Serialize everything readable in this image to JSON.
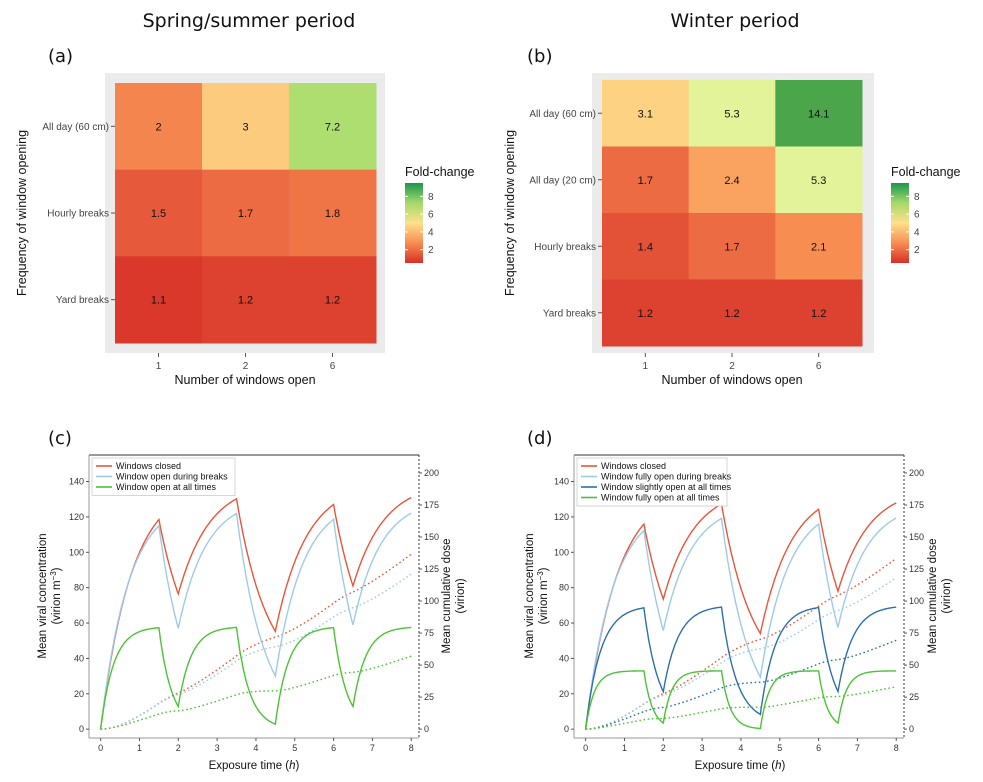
{
  "titles": {
    "left": "Spring/summer period",
    "right": "Winter period"
  },
  "panel_letters": {
    "a": "(a)",
    "b": "(b)",
    "c": "(c)",
    "d": "(d)"
  },
  "chart_data": [
    {
      "id": "a",
      "type": "heatmap",
      "xlabel": "Number of windows open",
      "ylabel": "Frequency of window opening",
      "x_categories": [
        "1",
        "2",
        "6"
      ],
      "y_categories": [
        "All day (60 cm)",
        "Hourly breaks",
        "Yard breaks"
      ],
      "values": [
        [
          2,
          3,
          7.2
        ],
        [
          1.5,
          1.7,
          1.8
        ],
        [
          1.1,
          1.2,
          1.2
        ]
      ],
      "value_labels": [
        [
          "2",
          "3",
          "7.2"
        ],
        [
          "1.5",
          "1.7",
          "1.8"
        ],
        [
          "1.1",
          "1.2",
          "1.2"
        ]
      ],
      "legend_title": "Fold-change",
      "legend_ticks": [
        "2",
        "4",
        "6",
        "8"
      ]
    },
    {
      "id": "b",
      "type": "heatmap",
      "xlabel": "Number of windows open",
      "ylabel": "Frequency of window opening",
      "x_categories": [
        "1",
        "2",
        "6"
      ],
      "y_categories": [
        "All day (60 cm)",
        "All day (20 cm)",
        "Hourly breaks",
        "Yard breaks"
      ],
      "values": [
        [
          3.1,
          5.3,
          14.1
        ],
        [
          1.7,
          2.4,
          5.3
        ],
        [
          1.4,
          1.7,
          2.1
        ],
        [
          1.2,
          1.2,
          1.2
        ]
      ],
      "value_labels": [
        [
          "3.1",
          "5.3",
          "14.1"
        ],
        [
          "1.7",
          "2.4",
          "5.3"
        ],
        [
          "1.4",
          "1.7",
          "2.1"
        ],
        [
          "1.2",
          "1.2",
          "1.2"
        ]
      ],
      "legend_title": "Fold-change",
      "legend_ticks": [
        "2",
        "4",
        "6",
        "8"
      ]
    },
    {
      "id": "c",
      "type": "line",
      "xlabel": "Exposure time",
      "xlabel_unit": "h",
      "ylabel": "Mean viral concentration",
      "ylabel_sub": "(virion m",
      "ylabel_sup": "−3",
      "ylabel_tail": ")",
      "y2label": "Mean cumulative dose",
      "y2label_sub": "(virion)",
      "xlim": [
        -0.3,
        8.2
      ],
      "ylim": [
        -5,
        155
      ],
      "y2lim": [
        -6.9,
        214
      ],
      "x_ticks": [
        "0",
        "1",
        "2",
        "3",
        "4",
        "5",
        "6",
        "7",
        "8"
      ],
      "y_ticks": [
        "0",
        "20",
        "40",
        "60",
        "80",
        "100",
        "120",
        "140"
      ],
      "y2_ticks": [
        "0",
        "25",
        "50",
        "75",
        "100",
        "125",
        "150",
        "175",
        "200"
      ],
      "legend": [
        "Windows closed",
        "Window open during breaks",
        "Window open at all times"
      ],
      "series": [
        {
          "name": "Windows closed",
          "color": "#e8553a",
          "C": 140,
          "k": 1.25,
          "segments": [
            [
              0,
              1.5,
              1
            ],
            [
              1.5,
              2,
              0.2
            ],
            [
              2,
              3.5,
              1
            ],
            [
              3.5,
              4.5,
              0.18
            ],
            [
              4.5,
              6,
              1
            ],
            [
              6,
              6.5,
              0.2
            ],
            [
              6.5,
              8,
              1
            ]
          ]
        },
        {
          "name": "Window open during breaks",
          "color": "#9ecae9",
          "C": 131,
          "k": 1.4,
          "segments": [
            [
              0,
              1.5,
              1
            ],
            [
              1.5,
              2,
              0
            ],
            [
              2,
              3.5,
              1
            ],
            [
              3.5,
              4.5,
              0
            ],
            [
              4.5,
              6,
              1
            ],
            [
              6,
              6.5,
              0
            ],
            [
              6.5,
              8,
              1
            ]
          ]
        },
        {
          "name": "Window open at all times",
          "color": "#4cc236",
          "C": 58,
          "k": 3.0,
          "segments": [
            [
              0,
              1.5,
              1
            ],
            [
              1.5,
              2,
              0
            ],
            [
              2,
              3.5,
              1
            ],
            [
              3.5,
              4.5,
              0
            ],
            [
              4.5,
              6,
              1
            ],
            [
              6,
              6.5,
              0
            ],
            [
              6.5,
              8,
              1
            ]
          ]
        }
      ]
    },
    {
      "id": "d",
      "type": "line",
      "xlabel": "Exposure time",
      "xlabel_unit": "h",
      "ylabel": "Mean viral concentration",
      "ylabel_sub": "(virion m",
      "ylabel_sup": "−3",
      "ylabel_tail": ")",
      "y2label": "Mean cumulative dose",
      "y2label_sub": "(virion)",
      "xlim": [
        -0.3,
        8.2
      ],
      "ylim": [
        -5,
        155
      ],
      "y2lim": [
        -6.9,
        214
      ],
      "x_ticks": [
        "0",
        "1",
        "2",
        "3",
        "4",
        "5",
        "6",
        "7",
        "8"
      ],
      "y_ticks": [
        "0",
        "20",
        "40",
        "60",
        "80",
        "100",
        "120",
        "140"
      ],
      "y2_ticks": [
        "0",
        "25",
        "50",
        "75",
        "100",
        "125",
        "150",
        "175",
        "200"
      ],
      "legend": [
        "Windows closed",
        "Window fully open during breaks",
        "Window slightly open at all times",
        "Window fully open at all times"
      ],
      "series": [
        {
          "name": "Windows closed",
          "color": "#e8553a",
          "C": 137,
          "k": 1.25,
          "segments": [
            [
              0,
              1.5,
              1
            ],
            [
              1.5,
              2,
              0.18
            ],
            [
              2,
              3.5,
              1
            ],
            [
              3.5,
              4.5,
              0.18
            ],
            [
              4.5,
              6,
              1
            ],
            [
              6,
              6.5,
              0.18
            ],
            [
              6.5,
              8,
              1
            ]
          ]
        },
        {
          "name": "Window fully open during breaks",
          "color": "#9ecae9",
          "C": 128,
          "k": 1.4,
          "segments": [
            [
              0,
              1.5,
              1
            ],
            [
              1.5,
              2,
              0
            ],
            [
              2,
              3.5,
              1
            ],
            [
              3.5,
              4.5,
              0
            ],
            [
              4.5,
              6,
              1
            ],
            [
              6,
              6.5,
              0
            ],
            [
              6.5,
              8,
              1
            ]
          ]
        },
        {
          "name": "Window slightly open at all times",
          "color": "#2c6fad",
          "C": 70,
          "k": 2.6,
          "segments": [
            [
              0,
              1.5,
              1
            ],
            [
              1.5,
              2,
              0.05
            ],
            [
              2,
              3.5,
              1
            ],
            [
              3.5,
              4.5,
              0.05
            ],
            [
              4.5,
              6,
              1
            ],
            [
              6,
              6.5,
              0.05
            ],
            [
              6.5,
              8,
              1
            ]
          ]
        },
        {
          "name": "Window fully open at all times",
          "color": "#4cc236",
          "C": 33,
          "k": 4.5,
          "segments": [
            [
              0,
              1.5,
              1
            ],
            [
              1.5,
              2,
              0
            ],
            [
              2,
              3.5,
              1
            ],
            [
              3.5,
              4.5,
              0
            ],
            [
              4.5,
              6,
              1
            ],
            [
              6,
              6.5,
              0
            ],
            [
              6.5,
              8,
              1
            ]
          ]
        }
      ]
    }
  ]
}
